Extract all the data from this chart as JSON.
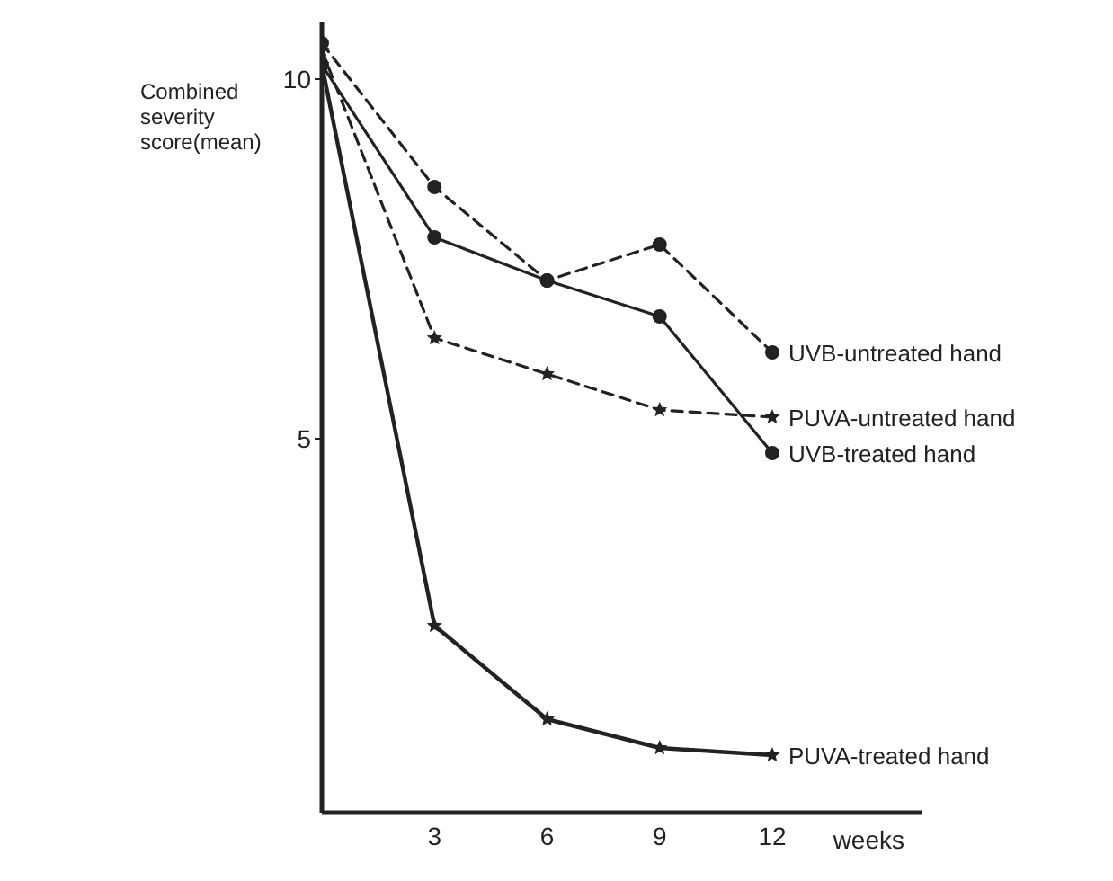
{
  "chart_data": {
    "type": "line",
    "xlabel": "weeks",
    "ylabel": "Combined severity score(mean)",
    "x": [
      0,
      3,
      6,
      9,
      12
    ],
    "xlim": [
      0,
      16
    ],
    "xticks": [
      3,
      6,
      9,
      12
    ],
    "ylim": [
      -0.2,
      10.8
    ],
    "yticks": [
      5,
      10
    ],
    "grid": false,
    "legend": false,
    "series": [
      {
        "name": "UVB-untreated hand",
        "color": "#222222",
        "values": [
          10.5,
          8.5,
          7.2,
          7.7,
          6.2
        ],
        "marker": "circle",
        "line_style": "dashed"
      },
      {
        "name": "PUVA-untreated hand",
        "color": "#222222",
        "values": [
          10.4,
          6.4,
          5.9,
          5.4,
          5.3
        ],
        "marker": "star",
        "line_style": "dashed"
      },
      {
        "name": "UVB-treated hand",
        "color": "#222222",
        "values": [
          10.2,
          7.8,
          7.2,
          6.7,
          4.8
        ],
        "marker": "circle",
        "line_style": "solid"
      },
      {
        "name": "PUVA-treated hand",
        "color": "#222222",
        "values": [
          10.2,
          2.4,
          1.1,
          0.7,
          0.6
        ],
        "marker": "star",
        "line_style": "solid"
      }
    ]
  }
}
